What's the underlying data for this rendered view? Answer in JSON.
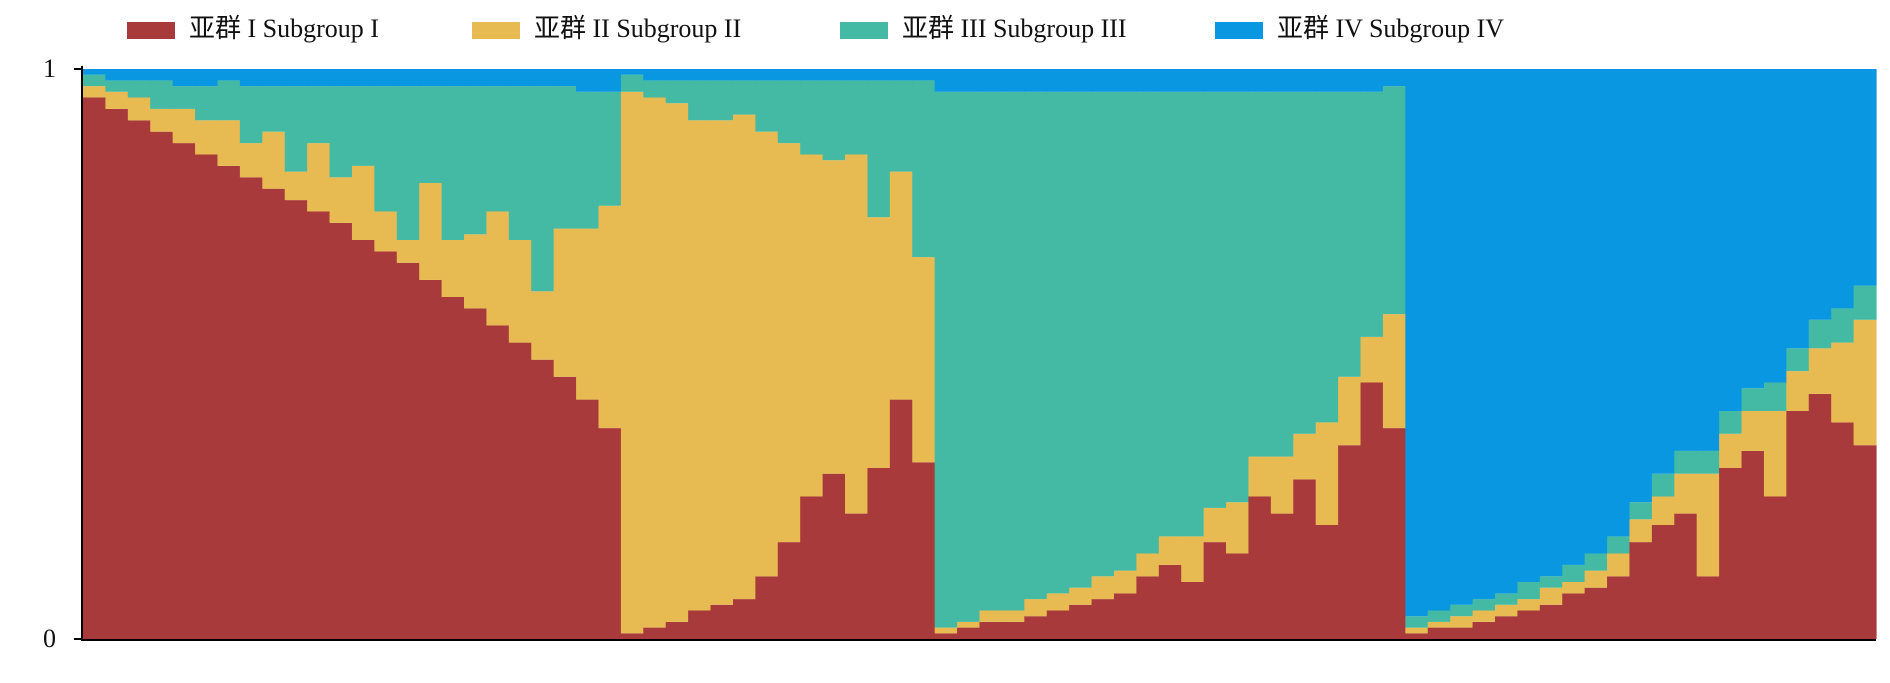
{
  "chart_data": {
    "type": "stacked_bar",
    "ylim": [
      0,
      1
    ],
    "yticks": [
      0,
      1
    ],
    "series": [
      {
        "name": "亚群 I Subgroup I",
        "color": "#a83a3b",
        "values": [
          0.95,
          0.93,
          0.91,
          0.89,
          0.87,
          0.85,
          0.83,
          0.81,
          0.79,
          0.77,
          0.75,
          0.73,
          0.7,
          0.68,
          0.66,
          0.63,
          0.6,
          0.58,
          0.55,
          0.52,
          0.49,
          0.46,
          0.42,
          0.37,
          0.01,
          0.02,
          0.03,
          0.05,
          0.06,
          0.07,
          0.11,
          0.17,
          0.25,
          0.29,
          0.22,
          0.3,
          0.42,
          0.31,
          0.01,
          0.02,
          0.03,
          0.03,
          0.04,
          0.05,
          0.06,
          0.07,
          0.08,
          0.11,
          0.13,
          0.1,
          0.17,
          0.15,
          0.25,
          0.22,
          0.28,
          0.2,
          0.34,
          0.45,
          0.37,
          0.01,
          0.02,
          0.02,
          0.03,
          0.04,
          0.05,
          0.06,
          0.08,
          0.09,
          0.11,
          0.17,
          0.2,
          0.22,
          0.11,
          0.3,
          0.33,
          0.25,
          0.4,
          0.43,
          0.38,
          0.34
        ]
      },
      {
        "name": "亚群 II Subgroup II",
        "color": "#e8bb52",
        "values": [
          0.02,
          0.03,
          0.04,
          0.04,
          0.06,
          0.06,
          0.08,
          0.06,
          0.1,
          0.05,
          0.12,
          0.08,
          0.13,
          0.07,
          0.04,
          0.17,
          0.1,
          0.13,
          0.2,
          0.18,
          0.12,
          0.26,
          0.3,
          0.39,
          0.95,
          0.93,
          0.91,
          0.86,
          0.85,
          0.85,
          0.78,
          0.7,
          0.6,
          0.55,
          0.63,
          0.44,
          0.4,
          0.36,
          0.01,
          0.01,
          0.02,
          0.02,
          0.03,
          0.03,
          0.03,
          0.04,
          0.04,
          0.04,
          0.05,
          0.08,
          0.06,
          0.09,
          0.07,
          0.1,
          0.08,
          0.18,
          0.12,
          0.08,
          0.2,
          0.01,
          0.01,
          0.02,
          0.02,
          0.02,
          0.02,
          0.03,
          0.02,
          0.03,
          0.04,
          0.04,
          0.05,
          0.07,
          0.18,
          0.06,
          0.07,
          0.15,
          0.07,
          0.08,
          0.14,
          0.22
        ]
      },
      {
        "name": "亚群 III Subgroup III",
        "color": "#44b9a3",
        "values": [
          0.02,
          0.02,
          0.03,
          0.05,
          0.04,
          0.06,
          0.07,
          0.1,
          0.08,
          0.15,
          0.1,
          0.16,
          0.14,
          0.22,
          0.27,
          0.17,
          0.27,
          0.26,
          0.22,
          0.27,
          0.36,
          0.25,
          0.24,
          0.2,
          0.03,
          0.03,
          0.04,
          0.07,
          0.07,
          0.06,
          0.09,
          0.11,
          0.13,
          0.14,
          0.13,
          0.24,
          0.16,
          0.31,
          0.94,
          0.93,
          0.91,
          0.91,
          0.89,
          0.88,
          0.87,
          0.85,
          0.84,
          0.81,
          0.78,
          0.78,
          0.73,
          0.72,
          0.64,
          0.64,
          0.6,
          0.58,
          0.5,
          0.43,
          0.4,
          0.02,
          0.02,
          0.02,
          0.02,
          0.02,
          0.03,
          0.02,
          0.03,
          0.03,
          0.03,
          0.03,
          0.04,
          0.04,
          0.04,
          0.04,
          0.04,
          0.05,
          0.04,
          0.05,
          0.06,
          0.06
        ]
      },
      {
        "name": "亚群 IV Subgroup IV",
        "color": "#0897e0",
        "values": [
          0.01,
          0.02,
          0.02,
          0.02,
          0.03,
          0.03,
          0.02,
          0.03,
          0.03,
          0.03,
          0.03,
          0.03,
          0.03,
          0.03,
          0.03,
          0.03,
          0.03,
          0.03,
          0.03,
          0.03,
          0.03,
          0.03,
          0.04,
          0.04,
          0.01,
          0.02,
          0.02,
          0.02,
          0.02,
          0.02,
          0.02,
          0.02,
          0.02,
          0.02,
          0.02,
          0.02,
          0.02,
          0.02,
          0.04,
          0.04,
          0.04,
          0.04,
          0.04,
          0.04,
          0.04,
          0.04,
          0.04,
          0.04,
          0.04,
          0.04,
          0.04,
          0.04,
          0.04,
          0.04,
          0.04,
          0.04,
          0.04,
          0.04,
          0.03,
          0.96,
          0.95,
          0.94,
          0.93,
          0.92,
          0.9,
          0.89,
          0.87,
          0.85,
          0.82,
          0.76,
          0.71,
          0.67,
          0.67,
          0.6,
          0.56,
          0.55,
          0.49,
          0.44,
          0.42,
          0.38
        ]
      }
    ]
  }
}
